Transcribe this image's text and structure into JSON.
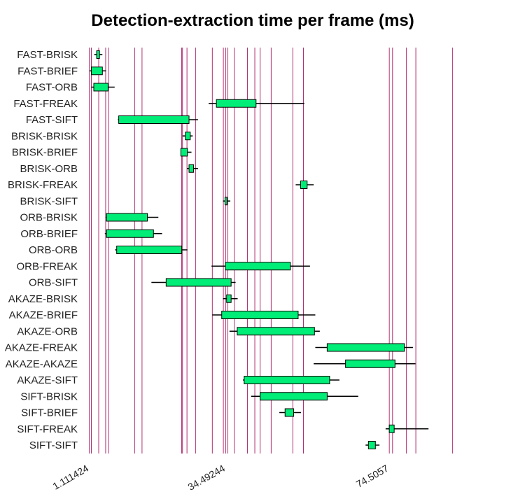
{
  "chart_data": {
    "type": "boxplot",
    "title": "Detection-extraction time per frame (ms)",
    "orientation": "horizontal",
    "x_ticks": [
      "1.111424",
      "34.49244",
      "74.5057"
    ],
    "xlim": [
      1.0,
      100.0
    ],
    "box_fill": "#00ee77",
    "gridline_color": "#b03070",
    "gridlines_x": [
      1.111424,
      1.6,
      3.4,
      5.1,
      5.8,
      12.2,
      14.0,
      23.7,
      23.9,
      25.0,
      27.1,
      31.2,
      33.9,
      34.49244,
      35.0,
      36.6,
      39.8,
      41.6,
      42.9,
      45.6,
      50.9,
      53.5,
      74.5057,
      75.3,
      78.7,
      81.0,
      90.0
    ],
    "categories": [
      "FAST-BRISK",
      "FAST-BRIEF",
      "FAST-ORB",
      "FAST-FREAK",
      "FAST-SIFT",
      "BRISK-BRISK",
      "BRISK-BRIEF",
      "BRISK-ORB",
      "BRISK-FREAK",
      "BRISK-SIFT",
      "ORB-BRISK",
      "ORB-BRIEF",
      "ORB-ORB",
      "ORB-FREAK",
      "ORB-SIFT",
      "AKAZE-BRISK",
      "AKAZE-BRIEF",
      "AKAZE-ORB",
      "AKAZE-FREAK",
      "AKAZE-AKAZE",
      "AKAZE-SIFT",
      "SIFT-BRISK",
      "SIFT-BRIEF",
      "SIFT-FREAK",
      "SIFT-SIFT"
    ],
    "boxes": [
      {
        "whisker_low": 2.3,
        "q1": 2.9,
        "q3": 3.6,
        "whisker_high": 4.3
      },
      {
        "whisker_low": 1.2,
        "q1": 1.6,
        "q3": 4.3,
        "whisker_high": 5.2
      },
      {
        "whisker_low": 1.6,
        "q1": 2.2,
        "q3": 5.7,
        "whisker_high": 7.3
      },
      {
        "whisker_low": 30.3,
        "q1": 32.2,
        "q3": 41.9,
        "whisker_high": 53.7
      },
      {
        "whisker_low": 8.1,
        "q1": 8.3,
        "q3": 25.5,
        "whisker_high": 27.7
      },
      {
        "whisker_low": 23.9,
        "q1": 24.6,
        "q3": 25.8,
        "whisker_high": 26.4
      },
      {
        "whisker_low": 23.5,
        "q1": 23.5,
        "q3": 25.1,
        "whisker_high": 26.1
      },
      {
        "whisker_low": 25.0,
        "q1": 25.5,
        "q3": 26.6,
        "whisker_high": 27.7
      },
      {
        "whisker_low": 51.6,
        "q1": 52.8,
        "q3": 54.4,
        "whisker_high": 56.0
      },
      {
        "whisker_low": 33.8,
        "q1": 34.3,
        "q3": 34.8,
        "whisker_high": 35.6
      },
      {
        "whisker_low": 5.1,
        "q1": 5.3,
        "q3": 15.3,
        "whisker_high": 18.0
      },
      {
        "whisker_low": 4.9,
        "q1": 5.3,
        "q3": 16.8,
        "whisker_high": 18.9
      },
      {
        "whisker_low": 7.4,
        "q1": 7.8,
        "q3": 23.7,
        "whisker_high": 25.1
      },
      {
        "whisker_low": 31.0,
        "q1": 34.4,
        "q3": 50.3,
        "whisker_high": 55.1
      },
      {
        "whisker_low": 16.3,
        "q1": 19.9,
        "q3": 35.8,
        "whisker_high": 36.9
      },
      {
        "whisker_low": 33.8,
        "q1": 34.7,
        "q3": 35.8,
        "whisker_high": 37.4
      },
      {
        "whisker_low": 31.2,
        "q1": 33.5,
        "q3": 52.2,
        "whisker_high": 56.4
      },
      {
        "whisker_low": 35.4,
        "q1": 37.3,
        "q3": 56.2,
        "whisker_high": 57.5
      },
      {
        "whisker_low": 56.4,
        "q1": 59.3,
        "q3": 78.2,
        "whisker_high": 80.3
      },
      {
        "whisker_low": 56.0,
        "q1": 63.8,
        "q3": 75.9,
        "whisker_high": 80.9
      },
      {
        "whisker_low": 38.7,
        "q1": 39.0,
        "q3": 59.9,
        "whisker_high": 62.3
      },
      {
        "whisker_low": 40.7,
        "q1": 42.9,
        "q3": 59.3,
        "whisker_high": 66.9
      },
      {
        "whisker_low": 47.6,
        "q1": 49.0,
        "q3": 51.1,
        "whisker_high": 52.9
      },
      {
        "whisker_low": 73.6,
        "q1": 74.5,
        "q3": 75.7,
        "whisker_high": 84.1
      },
      {
        "whisker_low": 68.7,
        "q1": 69.4,
        "q3": 71.1,
        "whisker_high": 72.1
      }
    ]
  }
}
